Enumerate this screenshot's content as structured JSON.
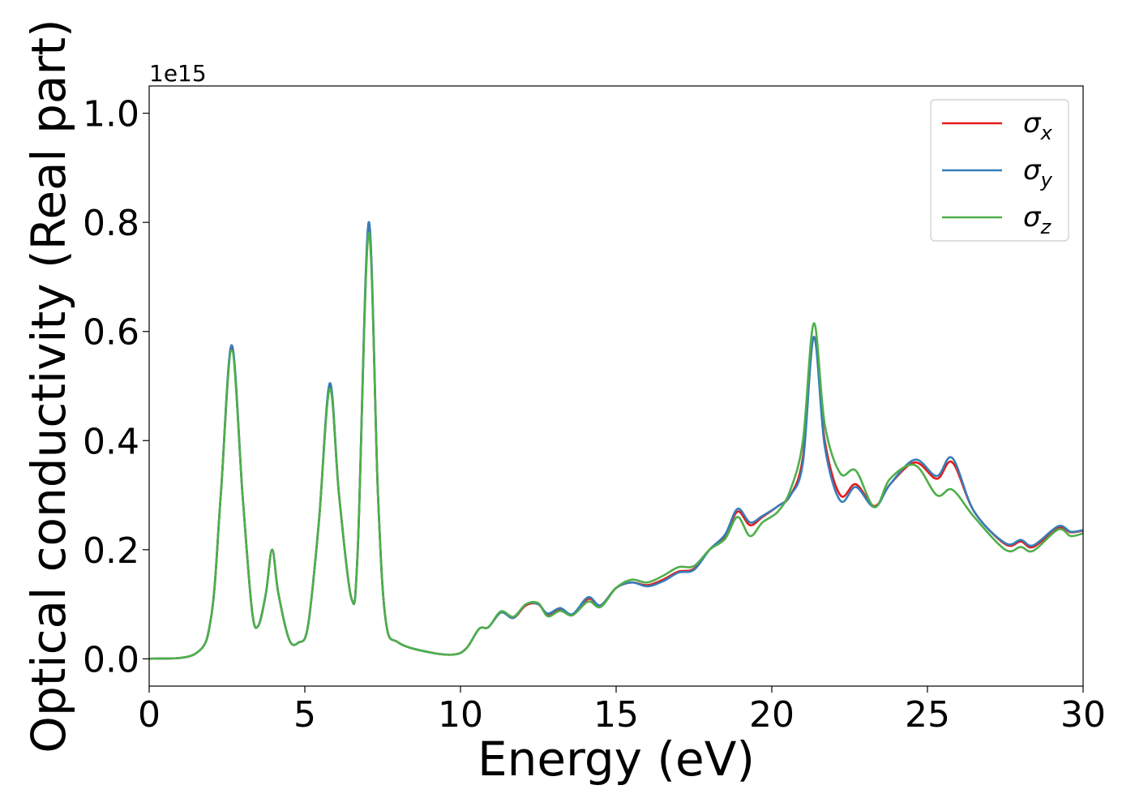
{
  "chart_data": {
    "type": "line",
    "title": "",
    "xlabel": "Energy (eV)",
    "ylabel": "Optical conductivity (Real part)",
    "y_offset_label": "1e15",
    "xlim": [
      0,
      30
    ],
    "ylim": [
      -0.05,
      1.05
    ],
    "x_ticks": [
      0,
      5,
      10,
      15,
      20,
      25,
      30
    ],
    "x_tick_labels": [
      "0",
      "5",
      "10",
      "15",
      "20",
      "25",
      "30"
    ],
    "y_ticks": [
      0.0,
      0.2,
      0.4,
      0.6,
      0.8,
      1.0
    ],
    "y_tick_labels": [
      "0.0",
      "0.2",
      "0.4",
      "0.6",
      "0.8",
      "1.0"
    ],
    "grid": false,
    "legend_position": "top-right",
    "series": [
      {
        "name": "σx",
        "symbol": "σ",
        "subscript": "x",
        "color": "#e41a1c",
        "points": [
          [
            0,
            0
          ],
          [
            1.5,
            0.01
          ],
          [
            2.0,
            0.08
          ],
          [
            2.3,
            0.3
          ],
          [
            2.65,
            0.57
          ],
          [
            3.0,
            0.3
          ],
          [
            3.3,
            0.09
          ],
          [
            3.5,
            0.06
          ],
          [
            3.75,
            0.12
          ],
          [
            3.95,
            0.2
          ],
          [
            4.15,
            0.12
          ],
          [
            4.5,
            0.035
          ],
          [
            4.8,
            0.03
          ],
          [
            5.1,
            0.06
          ],
          [
            5.45,
            0.25
          ],
          [
            5.8,
            0.5
          ],
          [
            6.1,
            0.3
          ],
          [
            6.5,
            0.11
          ],
          [
            6.7,
            0.2
          ],
          [
            7.05,
            0.79
          ],
          [
            7.35,
            0.3
          ],
          [
            7.6,
            0.07
          ],
          [
            8.0,
            0.03
          ],
          [
            9.0,
            0.012
          ],
          [
            9.8,
            0.008
          ],
          [
            10.2,
            0.02
          ],
          [
            10.6,
            0.055
          ],
          [
            10.9,
            0.058
          ],
          [
            11.3,
            0.085
          ],
          [
            11.7,
            0.075
          ],
          [
            12.1,
            0.098
          ],
          [
            12.5,
            0.1
          ],
          [
            12.8,
            0.08
          ],
          [
            13.2,
            0.09
          ],
          [
            13.6,
            0.08
          ],
          [
            14.1,
            0.11
          ],
          [
            14.5,
            0.098
          ],
          [
            15.0,
            0.13
          ],
          [
            15.5,
            0.14
          ],
          [
            16.0,
            0.135
          ],
          [
            16.5,
            0.145
          ],
          [
            17.0,
            0.16
          ],
          [
            17.5,
            0.165
          ],
          [
            18.0,
            0.2
          ],
          [
            18.5,
            0.225
          ],
          [
            18.9,
            0.27
          ],
          [
            19.3,
            0.245
          ],
          [
            19.7,
            0.26
          ],
          [
            20.2,
            0.28
          ],
          [
            20.6,
            0.3
          ],
          [
            21.0,
            0.37
          ],
          [
            21.35,
            0.59
          ],
          [
            21.7,
            0.4
          ],
          [
            22.2,
            0.3
          ],
          [
            22.7,
            0.32
          ],
          [
            23.3,
            0.28
          ],
          [
            23.8,
            0.32
          ],
          [
            24.6,
            0.36
          ],
          [
            25.3,
            0.33
          ],
          [
            25.8,
            0.36
          ],
          [
            26.5,
            0.27
          ],
          [
            27.5,
            0.21
          ],
          [
            28.0,
            0.215
          ],
          [
            28.4,
            0.205
          ],
          [
            29.2,
            0.24
          ],
          [
            29.6,
            0.232
          ],
          [
            30.0,
            0.235
          ]
        ]
      },
      {
        "name": "σy",
        "symbol": "σ",
        "subscript": "y",
        "color": "#377eb8",
        "points": [
          [
            0,
            0
          ],
          [
            1.5,
            0.01
          ],
          [
            2.0,
            0.08
          ],
          [
            2.3,
            0.3
          ],
          [
            2.65,
            0.575
          ],
          [
            3.0,
            0.3
          ],
          [
            3.3,
            0.09
          ],
          [
            3.5,
            0.06
          ],
          [
            3.75,
            0.12
          ],
          [
            3.95,
            0.2
          ],
          [
            4.15,
            0.12
          ],
          [
            4.5,
            0.035
          ],
          [
            4.8,
            0.03
          ],
          [
            5.1,
            0.06
          ],
          [
            5.45,
            0.25
          ],
          [
            5.8,
            0.505
          ],
          [
            6.1,
            0.3
          ],
          [
            6.5,
            0.11
          ],
          [
            6.7,
            0.2
          ],
          [
            7.05,
            0.8
          ],
          [
            7.35,
            0.3
          ],
          [
            7.6,
            0.07
          ],
          [
            8.0,
            0.03
          ],
          [
            9.0,
            0.012
          ],
          [
            9.8,
            0.008
          ],
          [
            10.2,
            0.02
          ],
          [
            10.6,
            0.055
          ],
          [
            10.9,
            0.058
          ],
          [
            11.3,
            0.085
          ],
          [
            11.7,
            0.075
          ],
          [
            12.1,
            0.1
          ],
          [
            12.5,
            0.1
          ],
          [
            12.8,
            0.083
          ],
          [
            13.2,
            0.093
          ],
          [
            13.6,
            0.082
          ],
          [
            14.1,
            0.113
          ],
          [
            14.5,
            0.098
          ],
          [
            15.0,
            0.13
          ],
          [
            15.5,
            0.14
          ],
          [
            16.0,
            0.133
          ],
          [
            16.5,
            0.142
          ],
          [
            17.0,
            0.158
          ],
          [
            17.5,
            0.163
          ],
          [
            18.0,
            0.2
          ],
          [
            18.5,
            0.228
          ],
          [
            18.9,
            0.275
          ],
          [
            19.3,
            0.25
          ],
          [
            19.7,
            0.262
          ],
          [
            20.2,
            0.28
          ],
          [
            20.6,
            0.3
          ],
          [
            21.0,
            0.36
          ],
          [
            21.35,
            0.59
          ],
          [
            21.7,
            0.39
          ],
          [
            22.2,
            0.29
          ],
          [
            22.7,
            0.315
          ],
          [
            23.3,
            0.278
          ],
          [
            23.8,
            0.32
          ],
          [
            24.6,
            0.365
          ],
          [
            25.3,
            0.335
          ],
          [
            25.8,
            0.368
          ],
          [
            26.5,
            0.27
          ],
          [
            27.5,
            0.212
          ],
          [
            28.0,
            0.218
          ],
          [
            28.4,
            0.208
          ],
          [
            29.2,
            0.243
          ],
          [
            29.6,
            0.233
          ],
          [
            30.0,
            0.236
          ]
        ]
      },
      {
        "name": "σz",
        "symbol": "σ",
        "subscript": "z",
        "color": "#4daf4a",
        "points": [
          [
            0,
            0
          ],
          [
            1.5,
            0.01
          ],
          [
            2.0,
            0.08
          ],
          [
            2.3,
            0.3
          ],
          [
            2.65,
            0.565
          ],
          [
            3.0,
            0.3
          ],
          [
            3.3,
            0.09
          ],
          [
            3.5,
            0.06
          ],
          [
            3.75,
            0.12
          ],
          [
            3.95,
            0.2
          ],
          [
            4.15,
            0.12
          ],
          [
            4.5,
            0.035
          ],
          [
            4.8,
            0.03
          ],
          [
            5.1,
            0.06
          ],
          [
            5.45,
            0.25
          ],
          [
            5.8,
            0.495
          ],
          [
            6.1,
            0.3
          ],
          [
            6.5,
            0.11
          ],
          [
            6.7,
            0.2
          ],
          [
            7.05,
            0.78
          ],
          [
            7.35,
            0.3
          ],
          [
            7.6,
            0.07
          ],
          [
            8.0,
            0.03
          ],
          [
            9.0,
            0.012
          ],
          [
            9.8,
            0.008
          ],
          [
            10.2,
            0.02
          ],
          [
            10.6,
            0.055
          ],
          [
            10.9,
            0.058
          ],
          [
            11.3,
            0.087
          ],
          [
            11.7,
            0.077
          ],
          [
            12.1,
            0.1
          ],
          [
            12.5,
            0.102
          ],
          [
            12.8,
            0.078
          ],
          [
            13.2,
            0.088
          ],
          [
            13.6,
            0.08
          ],
          [
            14.1,
            0.105
          ],
          [
            14.5,
            0.095
          ],
          [
            15.0,
            0.13
          ],
          [
            15.5,
            0.145
          ],
          [
            16.0,
            0.14
          ],
          [
            16.5,
            0.152
          ],
          [
            17.0,
            0.168
          ],
          [
            17.5,
            0.17
          ],
          [
            18.0,
            0.2
          ],
          [
            18.5,
            0.22
          ],
          [
            18.9,
            0.26
          ],
          [
            19.3,
            0.225
          ],
          [
            19.7,
            0.25
          ],
          [
            20.2,
            0.27
          ],
          [
            20.6,
            0.31
          ],
          [
            21.0,
            0.4
          ],
          [
            21.35,
            0.615
          ],
          [
            21.7,
            0.43
          ],
          [
            22.2,
            0.34
          ],
          [
            22.7,
            0.345
          ],
          [
            23.3,
            0.278
          ],
          [
            23.8,
            0.33
          ],
          [
            24.6,
            0.355
          ],
          [
            25.3,
            0.3
          ],
          [
            25.8,
            0.31
          ],
          [
            26.5,
            0.26
          ],
          [
            27.5,
            0.2
          ],
          [
            28.0,
            0.205
          ],
          [
            28.4,
            0.198
          ],
          [
            29.2,
            0.237
          ],
          [
            29.6,
            0.225
          ],
          [
            30.0,
            0.23
          ]
        ]
      }
    ]
  }
}
